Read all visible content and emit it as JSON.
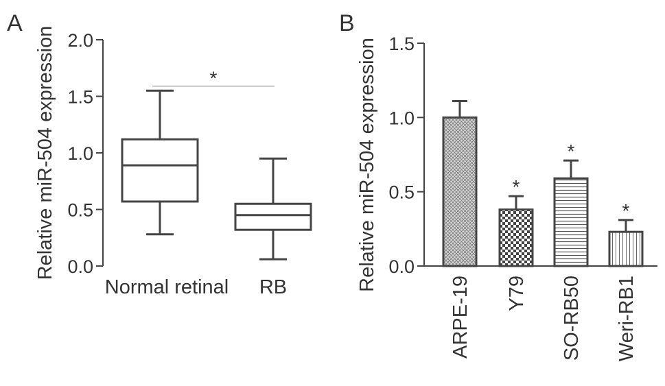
{
  "panels": {
    "a_label": "A",
    "b_label": "B"
  },
  "chart_data": [
    {
      "type": "box",
      "panel": "A",
      "title": "",
      "xlabel": "",
      "ylabel": "Relative miR-504 expression",
      "ylim": [
        0,
        2.0
      ],
      "yticks": [
        0.0,
        0.5,
        1.0,
        1.5,
        2.0
      ],
      "ytick_labels": [
        "0.0",
        "0.5",
        "1.0",
        "1.5",
        "2.0"
      ],
      "categories": [
        "Normal retinal",
        "RB"
      ],
      "boxes": [
        {
          "category": "Normal retinal",
          "min": 0.28,
          "q1": 0.57,
          "median": 0.89,
          "q3": 1.12,
          "max": 1.55
        },
        {
          "category": "RB",
          "min": 0.06,
          "q1": 0.32,
          "median": 0.45,
          "q3": 0.55,
          "max": 0.95
        }
      ],
      "significance": {
        "label": "*",
        "between": [
          "Normal retinal",
          "RB"
        ],
        "y": 1.59
      },
      "grid": false,
      "stroke_color": "#444444",
      "bracket_color": "#aaaaaa"
    },
    {
      "type": "bar",
      "panel": "B",
      "title": "",
      "xlabel": "",
      "ylabel": "Relative miR-504 expression",
      "ylim": [
        0,
        1.5
      ],
      "yticks": [
        0.0,
        0.5,
        1.0,
        1.5
      ],
      "ytick_labels": [
        "0.0",
        "0.5",
        "1.0",
        "1.5"
      ],
      "categories": [
        "ARPE-19",
        "Y79",
        "SO-RB50",
        "Weri-RB1"
      ],
      "values": [
        1.0,
        0.38,
        0.59,
        0.23
      ],
      "errors": [
        0.11,
        0.09,
        0.12,
        0.08
      ],
      "significance": [
        "",
        "*",
        "*",
        "*"
      ],
      "patterns": [
        "crosshatch",
        "checker",
        "horizontal",
        "vertical"
      ],
      "grid": false,
      "stroke_color": "#444444"
    }
  ]
}
